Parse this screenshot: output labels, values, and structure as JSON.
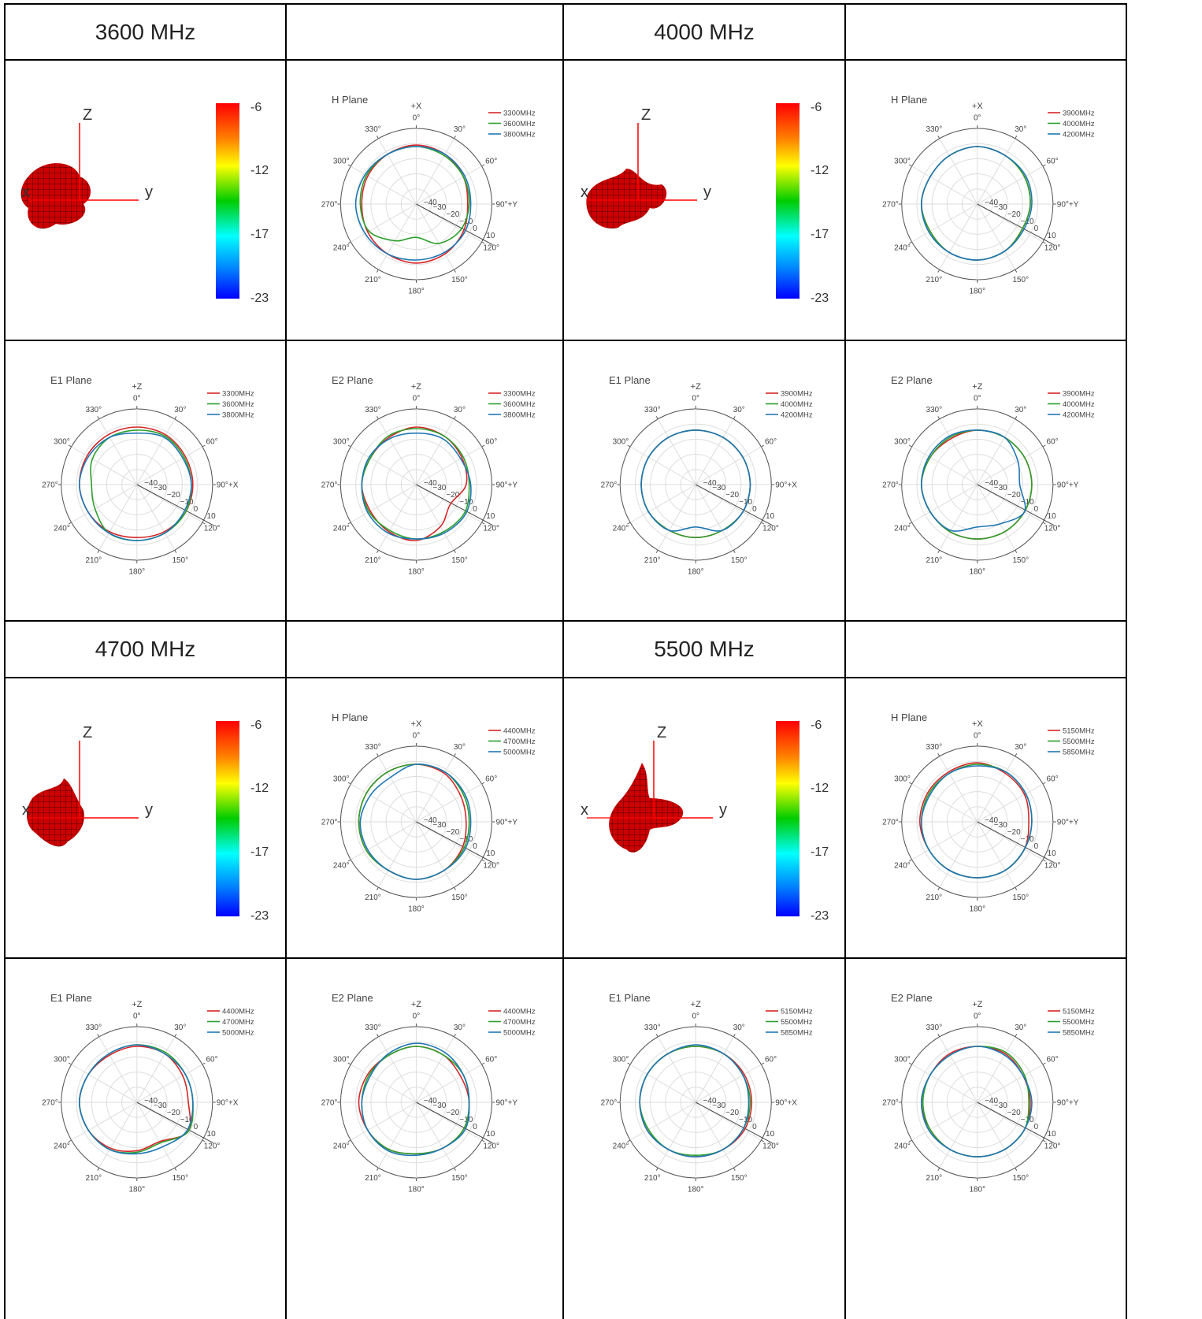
{
  "headers": [
    {
      "label": "3600 MHz"
    },
    {
      "label": "4000 MHz"
    },
    {
      "label": "4700 MHz"
    },
    {
      "label": "5500 MHz"
    }
  ],
  "colorbar_ticks": [
    "-6",
    "-12",
    "-17",
    "-23"
  ],
  "axis_labels_3d": {
    "x": "x",
    "y": "y",
    "z": "Z"
  },
  "polar_ticks": {
    "angles": [
      "0°",
      "30°",
      "60°",
      "90°",
      "120°",
      "150°",
      "180°",
      "210°",
      "240°",
      "270°",
      "300°",
      "330°"
    ],
    "radial": [
      "−40",
      "−30",
      "−20",
      "−10",
      "0",
      "10"
    ]
  },
  "colors": {
    "red": "#d62728",
    "green": "#2ca02c",
    "blue": "#1f77b4",
    "pattern": "#cc0000",
    "grid": "#dddddd"
  },
  "chart_data": [
    {
      "type": "line",
      "coordinate_system": "polar",
      "title": "H Plane",
      "direction_label": "+X",
      "axis_label_90": "90°+Y",
      "radial_range": [
        -40,
        10
      ],
      "series": [
        {
          "name": "3300MHz",
          "color": "red",
          "r_at_every_30deg": [
            -1,
            -2,
            -4,
            -6,
            -4,
            -2,
            -1,
            -2,
            -3,
            -4,
            -3,
            -2
          ]
        },
        {
          "name": "3600MHz",
          "color": "green",
          "r_at_every_30deg": [
            -2,
            -3,
            -4,
            -5,
            -6,
            -10,
            -18,
            -12,
            -4,
            -3,
            -2,
            -2
          ]
        },
        {
          "name": "3800MHz",
          "color": "blue",
          "r_at_every_30deg": [
            -2,
            -2,
            -3,
            -4,
            -3,
            -3,
            -3,
            -2,
            -1,
            0,
            -1,
            -2
          ]
        }
      ]
    },
    {
      "type": "line",
      "coordinate_system": "polar",
      "title": "E1 Plane",
      "direction_label": "+Z",
      "axis_label_90": "90°+X",
      "radial_range": [
        -40,
        10
      ],
      "series": [
        {
          "name": "3300MHz",
          "color": "red",
          "r_at_every_30deg": [
            -2,
            -2,
            -3,
            -3,
            -3,
            -4,
            -5,
            -4,
            -3,
            -2,
            -2,
            -2
          ]
        },
        {
          "name": "3600MHz",
          "color": "green",
          "r_at_every_30deg": [
            -4,
            -3,
            -4,
            -4,
            -3,
            -3,
            -3,
            -3,
            -8,
            -10,
            -6,
            -4
          ]
        },
        {
          "name": "3800MHz",
          "color": "blue",
          "r_at_every_30deg": [
            -6,
            -4,
            -5,
            -4,
            -4,
            -3,
            -3,
            -3,
            -3,
            -2,
            -3,
            -4
          ]
        }
      ]
    },
    {
      "type": "line",
      "coordinate_system": "polar",
      "title": "E2 Plane",
      "direction_label": "+Z",
      "axis_label_90": "90°+Y",
      "radial_range": [
        -40,
        10
      ],
      "series": [
        {
          "name": "3300MHz",
          "color": "red",
          "r_at_every_30deg": [
            -2,
            -3,
            -5,
            -7,
            -14,
            -8,
            -3,
            -4,
            -5,
            -4,
            -5,
            -4
          ]
        },
        {
          "name": "3600MHz",
          "color": "green",
          "r_at_every_30deg": [
            -3,
            -3,
            -4,
            -5,
            -3,
            -4,
            -4,
            -5,
            -4,
            -4,
            -5,
            -3
          ]
        },
        {
          "name": "3800MHz",
          "color": "blue",
          "r_at_every_30deg": [
            -6,
            -5,
            -6,
            -4,
            -2,
            -3,
            -4,
            -3,
            -3,
            -4,
            -4,
            -5
          ]
        }
      ]
    },
    {
      "type": "line",
      "coordinate_system": "polar",
      "title": "H Plane",
      "direction_label": "+X",
      "axis_label_90": "90°+Y",
      "radial_range": [
        -40,
        10
      ],
      "series": [
        {
          "name": "3900MHz",
          "color": "red",
          "r_at_every_30deg": [
            -2,
            -3,
            -4,
            -5,
            -6,
            -4,
            -3,
            -3,
            -4,
            -3,
            -4,
            -3
          ]
        },
        {
          "name": "4000MHz",
          "color": "green",
          "r_at_every_30deg": [
            -2,
            -3,
            -4,
            -5,
            -6,
            -4,
            -3,
            -3,
            -4,
            -3,
            -4,
            -3
          ]
        },
        {
          "name": "4200MHz",
          "color": "blue",
          "r_at_every_30deg": [
            -2,
            -3,
            -3,
            -4,
            -5,
            -4,
            -3,
            -3,
            -3,
            -3,
            -4,
            -3
          ]
        }
      ]
    },
    {
      "type": "line",
      "coordinate_system": "polar",
      "title": "E1 Plane",
      "direction_label": "+Z",
      "axis_label_90": "90°+X",
      "radial_range": [
        -40,
        10
      ],
      "series": [
        {
          "name": "3900MHz",
          "color": "red",
          "r_at_every_30deg": [
            -4,
            -4,
            -4,
            -4,
            -4,
            -5,
            -5,
            -5,
            -4,
            -4,
            -4,
            -4
          ]
        },
        {
          "name": "4000MHz",
          "color": "green",
          "r_at_every_30deg": [
            -4,
            -4,
            -4,
            -4,
            -4,
            -5,
            -5,
            -5,
            -4,
            -4,
            -4,
            -4
          ]
        },
        {
          "name": "4200MHz",
          "color": "blue",
          "r_at_every_30deg": [
            -4,
            -4,
            -4,
            -4,
            -4,
            -5,
            -12,
            -5,
            -4,
            -4,
            -4,
            -4
          ]
        }
      ]
    },
    {
      "type": "line",
      "coordinate_system": "polar",
      "title": "E2 Plane",
      "direction_label": "+Z",
      "axis_label_90": "90°+Y",
      "radial_range": [
        -40,
        10
      ],
      "series": [
        {
          "name": "3900MHz",
          "color": "red",
          "r_at_every_30deg": [
            -4,
            -4,
            -4,
            -4,
            -4,
            -4,
            -4,
            -4,
            -4,
            -3,
            -4,
            -5
          ]
        },
        {
          "name": "4000MHz",
          "color": "green",
          "r_at_every_30deg": [
            -4,
            -4,
            -4,
            -4,
            -4,
            -4,
            -4,
            -4,
            -4,
            -3,
            -4,
            -4
          ]
        },
        {
          "name": "4200MHz",
          "color": "blue",
          "r_at_every_30deg": [
            -4,
            -4,
            -9,
            -12,
            -4,
            -10,
            -12,
            -5,
            -4,
            -3,
            -3,
            -3
          ]
        }
      ]
    },
    {
      "type": "line",
      "coordinate_system": "polar",
      "title": "H Plane",
      "direction_label": "+X",
      "axis_label_90": "90°+Y",
      "radial_range": [
        -40,
        10
      ],
      "series": [
        {
          "name": "4400MHz",
          "color": "red",
          "r_at_every_30deg": [
            -2,
            -3,
            -6,
            -7,
            -5,
            -3,
            -2,
            -3,
            -2,
            -2,
            -2,
            -2
          ]
        },
        {
          "name": "4700MHz",
          "color": "green",
          "r_at_every_30deg": [
            -2,
            -2,
            -4,
            -5,
            -4,
            -3,
            -2,
            -3,
            -2,
            -2,
            -2,
            -2
          ]
        },
        {
          "name": "5000MHz",
          "color": "blue",
          "r_at_every_30deg": [
            -2,
            -2,
            -3,
            -4,
            -3,
            -3,
            -2,
            -3,
            -3,
            -3,
            -5,
            -6
          ]
        }
      ]
    },
    {
      "type": "line",
      "coordinate_system": "polar",
      "title": "E1 Plane",
      "direction_label": "+Z",
      "axis_label_90": "90°+X",
      "radial_range": [
        -40,
        10
      ],
      "series": [
        {
          "name": "4400MHz",
          "color": "red",
          "r_at_every_30deg": [
            -3,
            -3,
            -5,
            -6,
            -1,
            -10,
            -8,
            -5,
            -3,
            -2,
            -3,
            -4
          ]
        },
        {
          "name": "4700MHz",
          "color": "green",
          "r_at_every_30deg": [
            -2,
            -2,
            -3,
            -3,
            -1,
            -9,
            -7,
            -4,
            -3,
            -2,
            -3,
            -3
          ]
        },
        {
          "name": "5000MHz",
          "color": "blue",
          "r_at_every_30deg": [
            -2,
            -3,
            -3,
            -3,
            -2,
            -6,
            -6,
            -4,
            -3,
            -2,
            -3,
            -3
          ]
        }
      ]
    },
    {
      "type": "line",
      "coordinate_system": "polar",
      "title": "E2 Plane",
      "direction_label": "+Z",
      "axis_label_90": "90°+Y",
      "radial_range": [
        -40,
        10
      ],
      "series": [
        {
          "name": "4400MHz",
          "color": "red",
          "r_at_every_30deg": [
            -3,
            -4,
            -6,
            -5,
            -4,
            -5,
            -6,
            -4,
            -3,
            -2,
            -3,
            -4
          ]
        },
        {
          "name": "4700MHz",
          "color": "green",
          "r_at_every_30deg": [
            -3,
            -4,
            -4,
            -5,
            -4,
            -5,
            -6,
            -4,
            -3,
            -4,
            -4,
            -4
          ]
        },
        {
          "name": "5000MHz",
          "color": "blue",
          "r_at_every_30deg": [
            -1,
            -2,
            -4,
            -5,
            -3,
            -5,
            -5,
            -3,
            -3,
            -4,
            -5,
            -3
          ]
        }
      ]
    },
    {
      "type": "line",
      "coordinate_system": "polar",
      "title": "H Plane",
      "direction_label": "+X",
      "axis_label_90": "90°+Y",
      "radial_range": [
        -40,
        10
      ],
      "series": [
        {
          "name": "5150MHz",
          "color": "red",
          "r_at_every_30deg": [
            -1,
            -3,
            -4,
            -6,
            -4,
            -3,
            -3,
            -3,
            -3,
            -2,
            -2,
            -2
          ]
        },
        {
          "name": "5500MHz",
          "color": "green",
          "r_at_every_30deg": [
            -2,
            -2,
            -3,
            -4,
            -4,
            -3,
            -3,
            -3,
            -3,
            -3,
            -3,
            -3
          ]
        },
        {
          "name": "5850MHz",
          "color": "blue",
          "r_at_every_30deg": [
            -3,
            -2,
            -3,
            -4,
            -4,
            -3,
            -3,
            -3,
            -3,
            -3,
            -4,
            -3
          ]
        }
      ]
    },
    {
      "type": "line",
      "coordinate_system": "polar",
      "title": "E1 Plane",
      "direction_label": "+Z",
      "axis_label_90": "90°+X",
      "radial_range": [
        -40,
        10
      ],
      "series": [
        {
          "name": "5150MHz",
          "color": "red",
          "r_at_every_30deg": [
            -3,
            -3,
            -3,
            -3,
            -3,
            -4,
            -4,
            -4,
            -3,
            -3,
            -3,
            -3
          ]
        },
        {
          "name": "5500MHz",
          "color": "green",
          "r_at_every_30deg": [
            -3,
            -3,
            -4,
            -4,
            -4,
            -4,
            -5,
            -4,
            -4,
            -3,
            -3,
            -3
          ]
        },
        {
          "name": "5850MHz",
          "color": "blue",
          "r_at_every_30deg": [
            -2,
            -3,
            -4,
            -5,
            -4,
            -4,
            -4,
            -4,
            -3,
            -3,
            -3,
            -3
          ]
        }
      ]
    },
    {
      "type": "line",
      "coordinate_system": "polar",
      "title": "E2 Plane",
      "direction_label": "+Z",
      "axis_label_90": "90°+Y",
      "radial_range": [
        -40,
        10
      ],
      "series": [
        {
          "name": "5150MHz",
          "color": "red",
          "r_at_every_30deg": [
            -3,
            -3,
            -5,
            -5,
            -4,
            -4,
            -4,
            -4,
            -4,
            -3,
            -4,
            -3
          ]
        },
        {
          "name": "5500MHz",
          "color": "green",
          "r_at_every_30deg": [
            -3,
            -2,
            -4,
            -6,
            -4,
            -4,
            -4,
            -4,
            -4,
            -4,
            -4,
            -4
          ]
        },
        {
          "name": "5850MHz",
          "color": "blue",
          "r_at_every_30deg": [
            -3,
            -4,
            -5,
            -4,
            -4,
            -4,
            -4,
            -4,
            -3,
            -3,
            -4,
            -4
          ]
        }
      ]
    }
  ]
}
